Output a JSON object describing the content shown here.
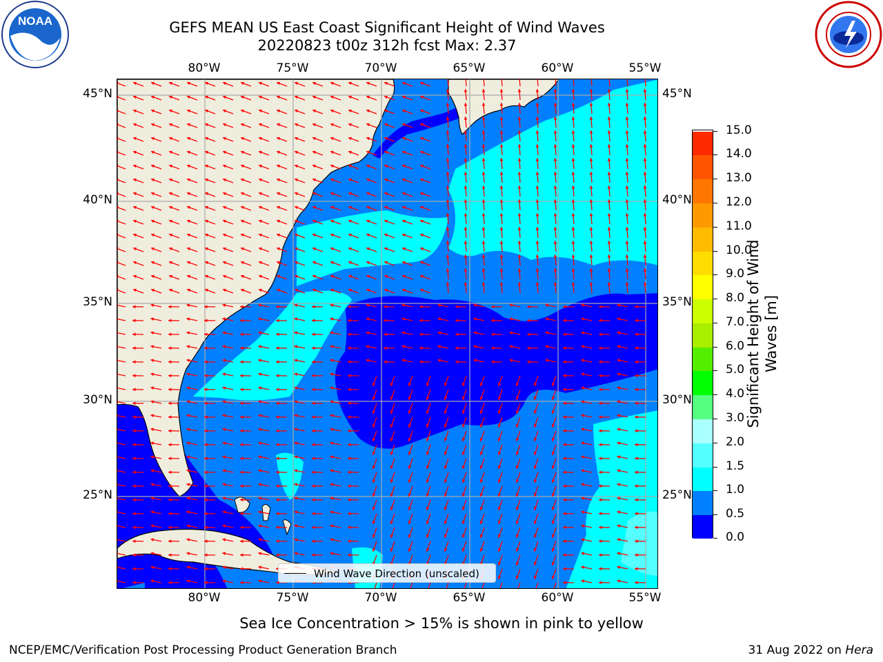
{
  "header": {
    "title_line1": "GEFS MEAN US East Coast Significant Height of Wind Waves",
    "title_line2": "20220823 t00z 312h fcst   Max: 2.37"
  },
  "logos": {
    "left_icon": "noaa-logo",
    "left_text": "NOAA",
    "right_icon": "national-weather-service-logo"
  },
  "map": {
    "lon_labels": [
      "80°W",
      "75°W",
      "70°W",
      "65°W",
      "60°W",
      "55°W"
    ],
    "lat_labels": [
      "45°N",
      "40°N",
      "35°N",
      "30°N",
      "25°N"
    ],
    "lon_range": [
      -85,
      -54.2
    ],
    "lat_range": [
      20,
      46
    ],
    "land_color": "#efedde",
    "arrow_color": "#ff0000",
    "gridlines": true
  },
  "legend": {
    "label": "Wind Wave Direction (unscaled)"
  },
  "colorbar": {
    "label_line1": "Significant Height of Wind",
    "label_line2": "Waves [m]",
    "ticks": [
      "15.0",
      "14.0",
      "13.0",
      "12.0",
      "11.0",
      "10.0",
      "9.0",
      "8.0",
      "7.0",
      "6.0",
      "5.0",
      "4.0",
      "3.0",
      "2.0",
      "1.5",
      "1.0",
      "0.5",
      "0.0"
    ],
    "colors": [
      "#0000ff",
      "#0080ff",
      "#00ffff",
      "#55ffff",
      "#aaffff",
      "#55ff80",
      "#00ff00",
      "#55ee00",
      "#aaee00",
      "#ccff00",
      "#ffff00",
      "#ffdd00",
      "#ffbb00",
      "#ff9900",
      "#ff7700",
      "#ff5500",
      "#ff2a00"
    ]
  },
  "footer": {
    "sea_ice_note": "Sea Ice Concentration > 15% is shown in pink to yellow",
    "credit": "NCEP/EMC/Verification Post Processing Product Generation Branch",
    "date_text": "31 Aug 2022 on ",
    "machine": "Hera"
  }
}
